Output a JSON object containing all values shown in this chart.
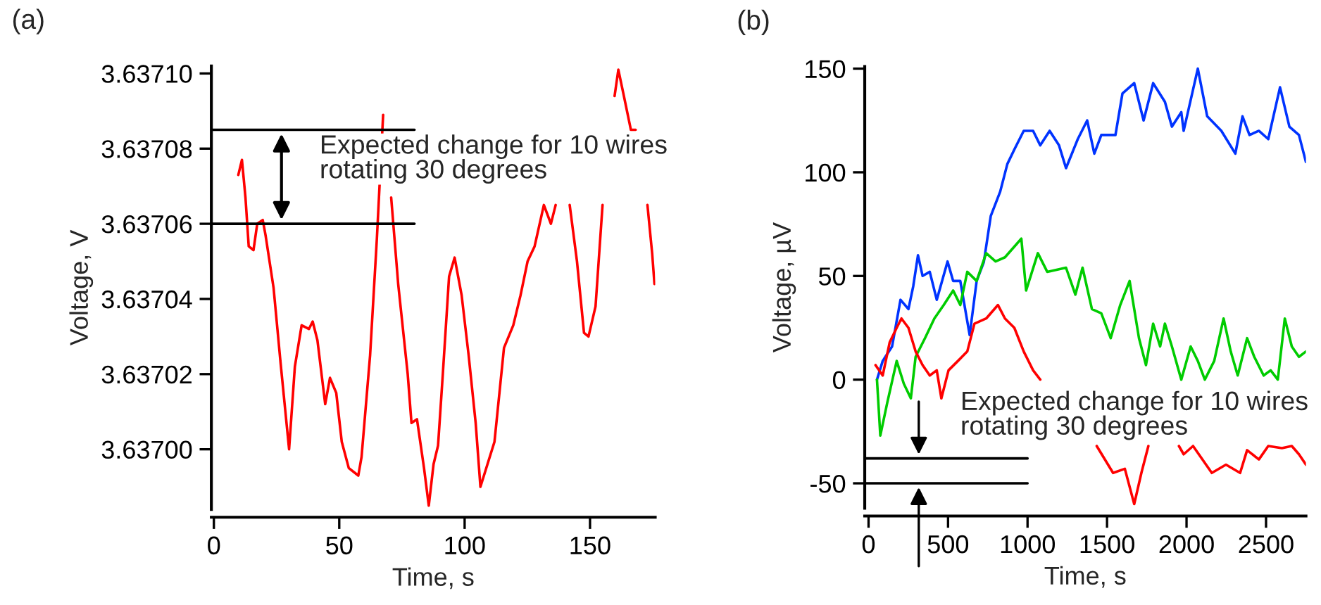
{
  "chart_data": [
    {
      "type": "line",
      "title": "(a)",
      "xlabel": "Time, s",
      "ylabel": "Voltage, V",
      "xlim": [
        -1,
        176
      ],
      "ylim": [
        3.636984,
        3.637102
      ],
      "xticks": [
        0,
        50,
        100,
        150
      ],
      "yticks": [
        {
          "value": 3.637,
          "label": "3.63700"
        },
        3.63702,
        3.63704,
        3.63706,
        3.63708,
        {
          "value": 3.6371,
          "label": "3.63710"
        }
      ],
      "grid": false,
      "legend": false,
      "annotations": [
        "Expected change for 10 wires\nrotating 30 degrees"
      ],
      "series": [
        {
          "color": "#ff0000",
          "x": [
            9.75,
            11.2,
            12.6,
            13.9,
            15.8,
            17.3,
            19.5,
            20.6,
            23.8,
            26.6,
            30,
            32.3,
            35,
            37.9,
            39.4,
            41.3,
            44.4,
            46.3,
            48.8,
            51,
            53.8,
            57.6,
            58.9,
            62.3,
            65,
            67.5,
            68.8,
            70.7,
            73.5,
            77.3,
            78.8,
            81,
            83.8,
            85.7,
            87.6,
            89.4,
            91.3,
            93.8,
            96,
            98.8,
            101.6,
            104.4,
            106.3,
            109.1,
            111.9,
            115.7,
            119.4,
            122.3,
            125.1,
            127.9,
            131.6,
            134.4,
            136.3,
            139,
            141.9,
            144.8,
            147.6,
            149.4,
            152.2,
            155,
            156,
            157,
            159.8,
            161.3,
            163.5,
            166.3,
            168.2,
            170,
            172,
            172.9,
            174.8,
            175.7
          ],
          "values": [
            3.637073,
            3.637077,
            3.637067,
            3.637054,
            3.637053,
            3.63706,
            3.637061,
            3.637057,
            3.637043,
            3.637023,
            3.637,
            3.637022,
            3.637033,
            3.637032,
            3.637034,
            3.637029,
            3.637012,
            3.637019,
            3.637015,
            3.637002,
            3.636995,
            3.636993,
            3.636998,
            3.637025,
            3.637056,
            3.637089,
            null,
            3.637067,
            3.637044,
            3.63702,
            3.637007,
            3.637008,
            3.636995,
            3.636985,
            3.636996,
            3.637001,
            3.63702,
            3.637046,
            3.637051,
            3.637041,
            3.637025,
            3.637007,
            3.63699,
            3.636996,
            3.637002,
            3.637027,
            3.637033,
            3.637041,
            3.63705,
            3.637054,
            3.637065,
            3.63706,
            3.637065,
            null,
            3.637065,
            3.63705,
            3.637031,
            3.63703,
            3.637038,
            3.637065,
            null,
            null,
            3.637094,
            3.637101,
            3.637094,
            3.637085,
            3.637085,
            null,
            null,
            3.637065,
            3.637052,
            3.637044
          ]
        },
        {
          "color": "#000000",
          "x": [
            -1,
            80
          ],
          "values": [
            3.637085,
            3.637085
          ]
        },
        {
          "color": "#000000",
          "x": [
            -1,
            80
          ],
          "values": [
            3.63706,
            3.63706
          ]
        }
      ]
    },
    {
      "type": "line",
      "title": "(b)",
      "xlabel": "Time, s",
      "ylabel": "Voltage, µV",
      "xlim": [
        -24,
        2751
      ],
      "ylim": [
        -62,
        151
      ],
      "xticks": [
        0,
        500,
        1000,
        1500,
        2000,
        2500
      ],
      "yticks": [
        -50,
        0,
        50,
        100,
        150
      ],
      "grid": false,
      "legend": false,
      "annotations": [
        "Expected change for 10 wires\nrotating 30 degrees"
      ],
      "series": [
        {
          "color": "#0033ff",
          "x": [
            53,
            89,
            148,
            201,
            251,
            281,
            311,
            340,
            385,
            429,
            497,
            532,
            577,
            636,
            680,
            725,
            769,
            828,
            873,
            917,
            976,
            1035,
            1080,
            1139,
            1198,
            1242,
            1316,
            1375,
            1420,
            1464,
            1553,
            1597,
            1671,
            1730,
            1790,
            1864,
            1908,
            1967,
            1982,
            2071,
            2130,
            2219,
            2307,
            2352,
            2396,
            2455,
            2514,
            2588,
            2647,
            2707,
            2751
          ],
          "values": [
            0,
            9,
            16,
            38.5,
            34,
            45,
            60,
            50,
            52,
            38.5,
            57,
            47.6,
            47.6,
            21.5,
            47.6,
            56.7,
            79,
            90.7,
            104,
            111,
            120,
            120,
            113,
            120,
            113,
            102,
            116,
            125,
            109,
            118,
            118,
            138,
            143,
            125,
            143,
            134,
            122,
            129,
            120,
            150,
            127,
            120,
            109,
            127,
            118,
            120,
            116,
            141,
            122,
            118,
            105
          ]
        },
        {
          "color": "#00cc00",
          "x": [
            53,
            74,
            118,
            177,
            222,
            266,
            296,
            355,
            414,
            473,
            532,
            577,
            621,
            680,
            740,
            799,
            858,
            961,
            991,
            1065,
            1124,
            1242,
            1301,
            1346,
            1405,
            1464,
            1523,
            1583,
            1642,
            1701,
            1745,
            1790,
            1834,
            1864,
            1908,
            1967,
            2026,
            2071,
            2115,
            2174,
            2233,
            2278,
            2322,
            2381,
            2426,
            2485,
            2529,
            2574,
            2618,
            2662,
            2707,
            2751
          ],
          "values": [
            0,
            -27,
            -11,
            9,
            -2,
            -9,
            11,
            20,
            29.5,
            36,
            43,
            36,
            52,
            47.6,
            61,
            57,
            59,
            68,
            43,
            61,
            52,
            54,
            41,
            54,
            34,
            32,
            20,
            36,
            47.6,
            20,
            7,
            27,
            16,
            27,
            16,
            0,
            16,
            9,
            0,
            9,
            29.5,
            13.6,
            2,
            20,
            11,
            2,
            4.5,
            0,
            29.5,
            16,
            11,
            13.6
          ]
        },
        {
          "color": "#ff0000",
          "x": [
            44,
            89,
            133,
            177,
            207,
            251,
            296,
            340,
            385,
            429,
            458,
            503,
            562,
            621,
            666,
            740,
            814,
            858,
            917,
            976,
            1035,
            1080,
            1250,
            1435,
            1538,
            1612,
            1671,
            1716,
            1760,
            1850,
            1952,
            1982,
            2041,
            2159,
            2248,
            2337,
            2381,
            2455,
            2514,
            2600,
            2662,
            2707,
            2751
          ],
          "values": [
            7,
            2,
            18,
            25,
            29.5,
            25,
            13.6,
            7,
            2,
            4.5,
            -9,
            4.5,
            9,
            13.6,
            27,
            29.5,
            36,
            29.5,
            25,
            13.6,
            4.5,
            0,
            null,
            -32,
            -45,
            -43,
            -60,
            -45,
            -32,
            null,
            -32,
            -36,
            -32,
            -45,
            -41,
            -45,
            -34,
            -38.5,
            -32,
            -33,
            -32,
            -36,
            -41
          ]
        },
        {
          "color": "#000000",
          "x": [
            -24,
            1000
          ],
          "values": [
            -38,
            -38
          ]
        },
        {
          "color": "#000000",
          "x": [
            -24,
            1000
          ],
          "values": [
            -50,
            -50
          ]
        }
      ]
    }
  ]
}
